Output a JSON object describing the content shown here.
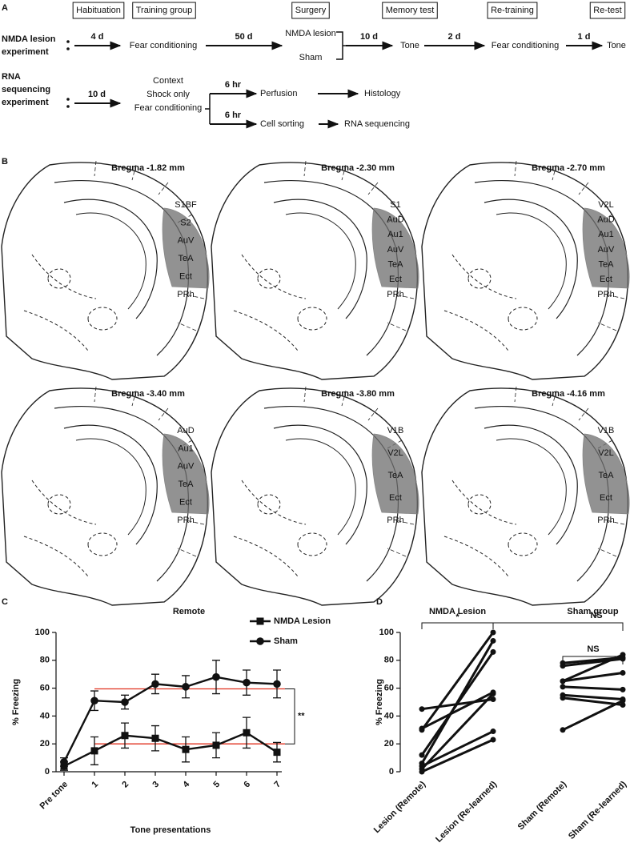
{
  "panel_a": {
    "letter": "A",
    "stages": [
      "Habituation",
      "Training group",
      "Surgery",
      "Memory test",
      "Re-training",
      "Re-test"
    ],
    "lesion_experiment": {
      "label": [
        "NMDA lesion",
        "experiment"
      ],
      "intervals": [
        "4 d",
        "50 d",
        "10 d",
        "2 d",
        "1 d"
      ],
      "steps": [
        "Fear conditioning",
        "NMDA lesion",
        "Sham",
        "Tone",
        "Fear conditioning",
        "Tone"
      ]
    },
    "rna_experiment": {
      "label": [
        "RNA",
        "sequencing",
        "experiment"
      ],
      "interval": "10 d",
      "groups": [
        "Context",
        "Shock only",
        "Fear conditioning"
      ],
      "branches": [
        {
          "interval": "6 hr",
          "step": "Perfusion",
          "outcome": "Histology"
        },
        {
          "interval": "6 hr",
          "step": "Cell sorting",
          "outcome": "RNA sequencing"
        }
      ]
    }
  },
  "panel_b": {
    "letter": "B",
    "sections": [
      {
        "bregma": "Bregma -1.82 mm",
        "regions": [
          "S1BF",
          "S2",
          "AuV",
          "TeA",
          "Ect",
          "PRh"
        ]
      },
      {
        "bregma": "Bregma -2.30 mm",
        "regions": [
          "S1",
          "AuD",
          "Au1",
          "AuV",
          "TeA",
          "Ect",
          "PRh"
        ]
      },
      {
        "bregma": "Bregma -2.70 mm",
        "regions": [
          "V2L",
          "AuD",
          "Au1",
          "AuV",
          "TeA",
          "Ect",
          "PRh"
        ]
      },
      {
        "bregma": "Bregma -3.40 mm",
        "regions": [
          "AuD",
          "Au1",
          "AuV",
          "TeA",
          "Ect",
          "PRh"
        ]
      },
      {
        "bregma": "Bregma -3.80 mm",
        "regions": [
          "V1B",
          "V2L",
          "TeA",
          "Ect",
          "PRh"
        ]
      },
      {
        "bregma": "Bregma -4.16 mm",
        "regions": [
          "V1B",
          "V2L",
          "TeA",
          "Ect",
          "PRh"
        ]
      }
    ]
  },
  "chart_data": [
    {
      "type": "line",
      "label": "C",
      "title": "Remote",
      "x_label": "Tone presentations",
      "y_label": "% Freezing",
      "categories": [
        "Pre tone",
        "1",
        "2",
        "3",
        "4",
        "5",
        "6",
        "7"
      ],
      "series": [
        {
          "name": "NMDA Lesion",
          "marker": "square",
          "color": "#111111",
          "values": [
            4,
            15,
            26,
            24,
            16,
            19,
            28,
            14
          ],
          "errors": [
            3,
            10,
            9,
            9,
            9,
            9,
            11,
            7
          ]
        },
        {
          "name": "Sham",
          "marker": "circle",
          "color": "#111111",
          "values": [
            7,
            51,
            50,
            63,
            61,
            68,
            64,
            63
          ],
          "errors": [
            3,
            7,
            5,
            7,
            8,
            12,
            9,
            10
          ]
        }
      ],
      "reference_lines": [
        {
          "value": 59.5,
          "color": "#e0301e"
        },
        {
          "value": 20,
          "color": "#e0301e"
        }
      ],
      "annotation": "**",
      "ylim": [
        0,
        100
      ],
      "yticks": [
        0,
        20,
        40,
        60,
        80,
        100
      ]
    },
    {
      "type": "paired",
      "label": "D",
      "y_label": "% Freezing",
      "categories": [
        "Lesion (Remote)",
        "Lesion (Re-learned)",
        "Sham (Remote)",
        "Sham (Re-learned)"
      ],
      "groups": [
        {
          "name": "NMDA Lesion",
          "remote": [
            45,
            31,
            30,
            12,
            6,
            4,
            2,
            0
          ],
          "relearned": [
            52,
            57,
            100,
            86,
            94,
            29,
            56,
            23
          ]
        },
        {
          "name": "Sham group",
          "remote": [
            78,
            76,
            65,
            65,
            61,
            55,
            53,
            30
          ],
          "relearned": [
            82,
            81,
            84,
            71,
            59,
            52,
            48,
            51
          ]
        }
      ],
      "annotations": [
        "*",
        "NS",
        "NS"
      ],
      "ylim": [
        0,
        100
      ],
      "yticks": [
        0,
        20,
        40,
        60,
        80,
        100
      ]
    }
  ]
}
